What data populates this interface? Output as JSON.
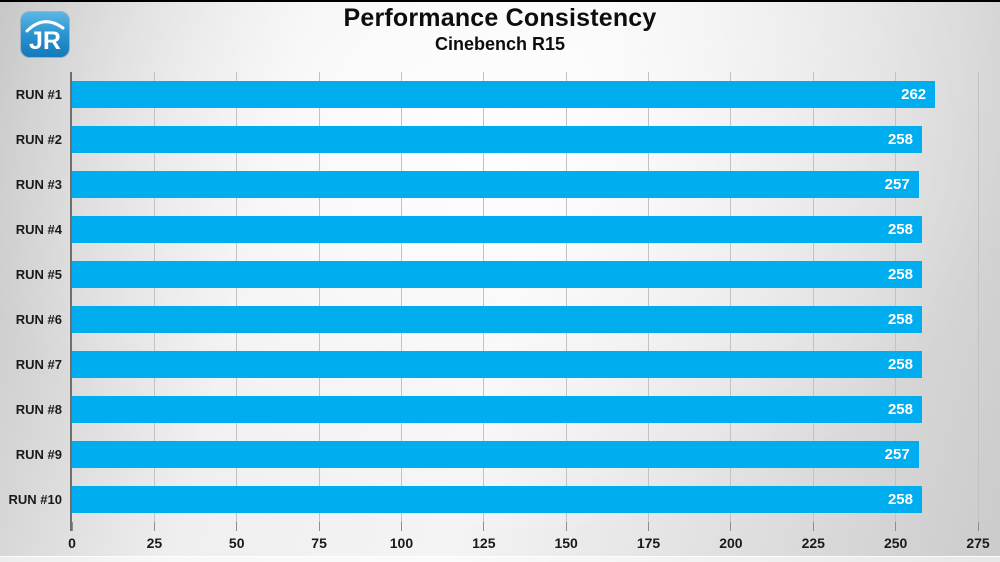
{
  "header": {
    "title": "Performance Consistency",
    "subtitle": "Cinebench R15",
    "logo_text": "JR"
  },
  "chart_data": {
    "type": "bar",
    "orientation": "horizontal",
    "title": "Performance Consistency",
    "subtitle": "Cinebench R15",
    "categories": [
      "RUN #1",
      "RUN #2",
      "RUN #3",
      "RUN #4",
      "RUN #5",
      "RUN #6",
      "RUN #7",
      "RUN #8",
      "RUN #9",
      "RUN #10"
    ],
    "values": [
      262,
      258,
      257,
      258,
      258,
      258,
      258,
      258,
      257,
      258
    ],
    "xlabel": "",
    "ylabel": "",
    "xlim": [
      0,
      275
    ],
    "xticks": [
      0,
      25,
      50,
      75,
      100,
      125,
      150,
      175,
      200,
      225,
      250,
      275
    ],
    "grid": "vertical",
    "legend": "none",
    "bar_color": "#00AEEF",
    "value_label_color": "#ffffff",
    "logo_color_top": "#5cb7e6",
    "logo_color_bottom": "#1478ba"
  }
}
